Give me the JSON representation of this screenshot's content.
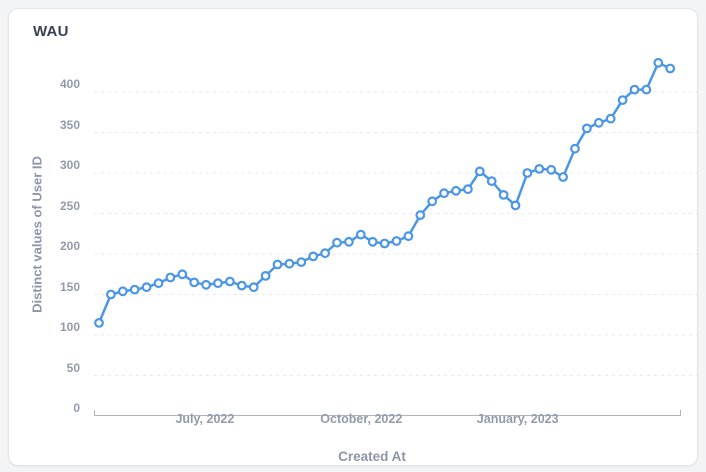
{
  "card": {
    "title": "WAU"
  },
  "colors": {
    "line": "#4c96e8",
    "marker_fill": "#ffffff",
    "grid": "#e8e9ed",
    "axis_domain": "#b0b4bd",
    "tick_text": "#939aab",
    "axis_title_text": "#8d95a9",
    "title_text": "#3b4154",
    "card_bg": "#ffffff",
    "page_bg": "#f3f4f6"
  },
  "chart_data": {
    "type": "line",
    "title": "WAU",
    "xlabel": "Created At",
    "ylabel": "Distinct values of User ID",
    "legend": "none",
    "grid": "horizontal-dashed",
    "marker": "open-circle",
    "ylim": [
      0,
      450
    ],
    "y_ticks": [
      0,
      50,
      100,
      150,
      200,
      250,
      300,
      350,
      400
    ],
    "x_ticks": [
      {
        "date": "2022-07-01",
        "label": "July, 2022"
      },
      {
        "date": "2022-10-01",
        "label": "October, 2022"
      },
      {
        "date": "2023-01-01",
        "label": "January, 2023"
      }
    ],
    "x": [
      "2022-04-25",
      "2022-05-02",
      "2022-05-09",
      "2022-05-16",
      "2022-05-23",
      "2022-05-30",
      "2022-06-06",
      "2022-06-13",
      "2022-06-20",
      "2022-06-27",
      "2022-07-04",
      "2022-07-11",
      "2022-07-18",
      "2022-07-25",
      "2022-08-01",
      "2022-08-08",
      "2022-08-15",
      "2022-08-22",
      "2022-08-29",
      "2022-09-05",
      "2022-09-12",
      "2022-09-19",
      "2022-09-26",
      "2022-10-03",
      "2022-10-10",
      "2022-10-17",
      "2022-10-24",
      "2022-10-31",
      "2022-11-07",
      "2022-11-14",
      "2022-11-21",
      "2022-11-28",
      "2022-12-05",
      "2022-12-12",
      "2022-12-19",
      "2022-12-26",
      "2023-01-02",
      "2023-01-09",
      "2023-01-16",
      "2023-01-23",
      "2023-01-30",
      "2023-02-06",
      "2023-02-13",
      "2023-02-20",
      "2023-02-27",
      "2023-03-06",
      "2023-03-13",
      "2023-03-20",
      "2023-03-27"
    ],
    "values": [
      115,
      150,
      154,
      156,
      159,
      164,
      171,
      175,
      165,
      162,
      164,
      166,
      161,
      159,
      173,
      187,
      188,
      190,
      197,
      201,
      214,
      215,
      224,
      215,
      213,
      216,
      222,
      248,
      265,
      275,
      278,
      280,
      302,
      290,
      273,
      260,
      300,
      305,
      304,
      295,
      330,
      355,
      362,
      367,
      390,
      403,
      403,
      436,
      429
    ]
  }
}
